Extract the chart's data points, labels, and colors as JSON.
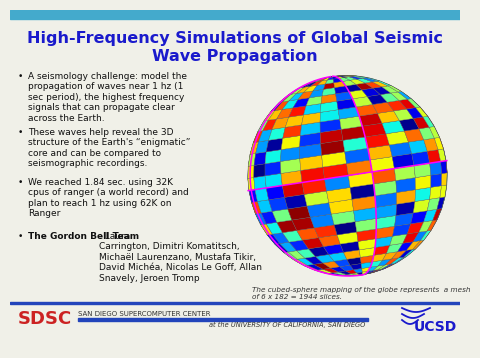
{
  "title_line1": "High-Frequency Simulations of Global Seismic",
  "title_line2": "Wave Propagation",
  "title_color": "#1a1acc",
  "title_fontsize": 11.5,
  "bg_color": "#f0f0e8",
  "top_bar_color": "#44aacc",
  "bottom_bar_color": "#2244bb",
  "sdsc_color": "#cc2222",
  "sdsc_text": "SDSC",
  "sdsc_sub": "SAN DIEGO SUPERCOMPUTER CENTER",
  "ucsd_text": "UCSD",
  "ucsd_sub": "at the UNIVERSITY OF CALIFORNIA, SAN DIEGO",
  "bullet1": "A seismology challenge: model the\npropagation of waves near 1 hz (1\nsec period), the highest frequency\nsignals that can propagate clear\nacross the Earth.",
  "bullet2": "These waves help reveal the 3D\nstructure of the Earth's “enigmatic”\ncore and can be compared to\nseismographic recordings.",
  "bullet3": "We reached 1.84 sec. using 32K\ncpus of ranger (a world record) and\nplan to reach 1 hz using 62K on\nRanger",
  "bold_label": "The Gordon Bell Team",
  "bold_rest": ": Laura\nCarrington, Dimitri Komatitsch,\nMichaël Laurenzano, Mustafa Tikir,\nDavid Michéa, Nicolas Le Goff, Allan\nSnavely, Jeroen Tromp",
  "caption": "The cubed-sphere mapping of the globe represents  a mesh\nof 6 x 182 = 1944 slices.",
  "text_fs": 6.5,
  "caption_fs": 5.2
}
